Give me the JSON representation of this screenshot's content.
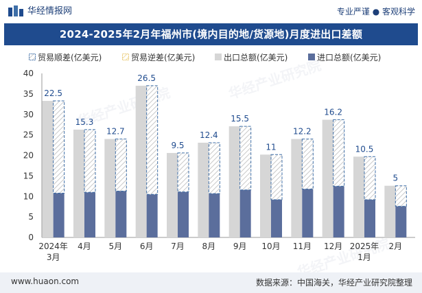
{
  "header": {
    "brand": "华经情报网",
    "tagline": "专业严谨 ● 客观科学"
  },
  "watermark": "华经产业研究院",
  "footer": {
    "site": "www.huaon.com",
    "source": "数据来源：中国海关，华经产业研究院整理"
  },
  "colors": {
    "title_bar": "#1f4b8e",
    "export_bar": "#d6d6d6",
    "import_bar": "#5b6e9c",
    "surplus_border": "#3f6fa8",
    "deficit_border": "#e8c56a"
  },
  "chart_data": {
    "type": "bar",
    "title": "2024-2025年2月年福州市(境内目的地/货源地)月度进出口差额",
    "categories": [
      "2024年3月",
      "4月",
      "5月",
      "6月",
      "7月",
      "8月",
      "9月",
      "10月",
      "11月",
      "12月",
      "2025年1月",
      "2月"
    ],
    "series": [
      {
        "name": "贸易顺差(亿美元)",
        "values": [
          22.5,
          15.3,
          12.7,
          26.5,
          9.5,
          12.4,
          15.5,
          11,
          12.2,
          16.2,
          10.5,
          5
        ]
      },
      {
        "name": "贸易逆差(亿美元)",
        "values": [
          0,
          0,
          0,
          0,
          0,
          0,
          0,
          0,
          0,
          0,
          0,
          0
        ]
      },
      {
        "name": "出口总额(亿美元)",
        "values": [
          33.3,
          26.3,
          24.0,
          37.0,
          20.6,
          23.1,
          27.1,
          20.2,
          24.0,
          28.7,
          19.7,
          12.6
        ]
      },
      {
        "name": "进口总额(亿美元)",
        "values": [
          10.8,
          11.0,
          11.3,
          10.5,
          11.1,
          10.7,
          11.6,
          9.2,
          11.8,
          12.5,
          9.2,
          7.6
        ]
      }
    ],
    "ylim": [
      0,
      40
    ],
    "yticks": [
      0,
      5,
      10,
      15,
      20,
      25,
      30,
      35,
      40
    ],
    "grid": false,
    "legend_position": "top"
  }
}
